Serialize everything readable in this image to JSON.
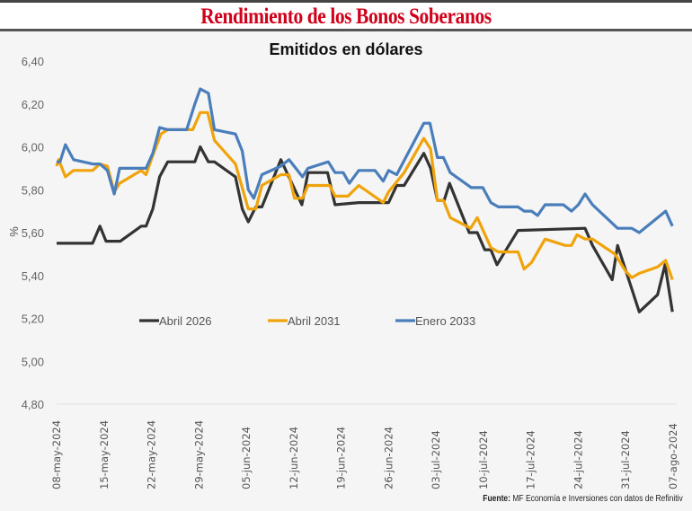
{
  "header": {
    "title": "Rendimiento de los Bonos Soberanos"
  },
  "chart_data": {
    "type": "line",
    "title": "Emitidos en dólares",
    "ylabel": "%",
    "xlabel": "",
    "x_unit": "days since 08-may-2024",
    "xlim": [
      0,
      91
    ],
    "ylim": [
      4.8,
      6.4
    ],
    "yticks": [
      "4,80",
      "5,00",
      "5,20",
      "5,40",
      "5,60",
      "5,80",
      "6,00",
      "6,20",
      "6,40"
    ],
    "yvalues": [
      4.8,
      5.0,
      5.2,
      5.4,
      5.6,
      5.8,
      6.0,
      6.2,
      6.4
    ],
    "xticks": [
      "08-may-2024",
      "15-may-2024",
      "22-may-2024",
      "29-may-2024",
      "05-jun-2024",
      "12-jun-2024",
      "19-jun-2024",
      "26-jun-2024",
      "03-jul-2024",
      "10-jul-2024",
      "17-jul-2024",
      "24-jul-2024",
      "31-jul-2024",
      "07-ago-2024"
    ],
    "grid": false,
    "legend_position": "bottom-inside",
    "series": [
      {
        "name": "Abril 2026",
        "color": "#333333",
        "points": [
          [
            0,
            5.55
          ],
          [
            5.3,
            5.55
          ],
          [
            6.4,
            5.63
          ],
          [
            7.3,
            5.56
          ],
          [
            9.4,
            5.56
          ],
          [
            12.5,
            5.63
          ],
          [
            13.2,
            5.63
          ],
          [
            14.2,
            5.71
          ],
          [
            15.2,
            5.86
          ],
          [
            16.4,
            5.93
          ],
          [
            20.4,
            5.93
          ],
          [
            21.2,
            6.0
          ],
          [
            22.4,
            5.93
          ],
          [
            23.3,
            5.93
          ],
          [
            26.4,
            5.86
          ],
          [
            27.4,
            5.71
          ],
          [
            28.3,
            5.65
          ],
          [
            29.4,
            5.72
          ],
          [
            30.3,
            5.72
          ],
          [
            33.1,
            5.94
          ],
          [
            36.2,
            5.73
          ],
          [
            37.1,
            5.88
          ],
          [
            40,
            5.88
          ],
          [
            41.1,
            5.73
          ],
          [
            44.6,
            5.74
          ],
          [
            49,
            5.74
          ],
          [
            50.2,
            5.82
          ],
          [
            51.3,
            5.82
          ],
          [
            54.2,
            5.97
          ],
          [
            55.2,
            5.9
          ],
          [
            56.2,
            5.75
          ],
          [
            57.2,
            5.75
          ],
          [
            58,
            5.83
          ],
          [
            60.9,
            5.6
          ],
          [
            62.1,
            5.6
          ],
          [
            63.2,
            5.52
          ],
          [
            64.1,
            5.52
          ],
          [
            65,
            5.45
          ],
          [
            68.1,
            5.61
          ],
          [
            78,
            5.62
          ],
          [
            79.1,
            5.54
          ],
          [
            82,
            5.38
          ],
          [
            82.8,
            5.54
          ],
          [
            86,
            5.23
          ],
          [
            88.7,
            5.31
          ],
          [
            89.8,
            5.45
          ],
          [
            90.9,
            5.23
          ]
        ]
      },
      {
        "name": "Abril 2031",
        "color": "#f0a30a",
        "points": [
          [
            0,
            5.91
          ],
          [
            0.3,
            5.94
          ],
          [
            1.3,
            5.86
          ],
          [
            2.5,
            5.89
          ],
          [
            5.3,
            5.89
          ],
          [
            6.4,
            5.92
          ],
          [
            7.5,
            5.91
          ],
          [
            8.5,
            5.79
          ],
          [
            9.3,
            5.83
          ],
          [
            12.5,
            5.89
          ],
          [
            13.2,
            5.87
          ],
          [
            14.2,
            5.96
          ],
          [
            15.4,
            6.06
          ],
          [
            16.4,
            6.08
          ],
          [
            20.1,
            6.08
          ],
          [
            21.2,
            6.16
          ],
          [
            22.3,
            6.16
          ],
          [
            23.3,
            6.03
          ],
          [
            26.4,
            5.92
          ],
          [
            28.3,
            5.71
          ],
          [
            29.4,
            5.71
          ],
          [
            30.3,
            5.82
          ],
          [
            33.1,
            5.87
          ],
          [
            34.3,
            5.87
          ],
          [
            35.1,
            5.76
          ],
          [
            36.3,
            5.76
          ],
          [
            37.1,
            5.82
          ],
          [
            40.3,
            5.82
          ],
          [
            41.1,
            5.77
          ],
          [
            43,
            5.77
          ],
          [
            44.6,
            5.82
          ],
          [
            48.2,
            5.74
          ],
          [
            49,
            5.79
          ],
          [
            51.3,
            5.88
          ],
          [
            54.2,
            6.04
          ],
          [
            55.2,
            5.99
          ],
          [
            56.2,
            5.75
          ],
          [
            57.1,
            5.75
          ],
          [
            58.1,
            5.67
          ],
          [
            61.1,
            5.62
          ],
          [
            62.1,
            5.67
          ],
          [
            64.1,
            5.53
          ],
          [
            65.2,
            5.51
          ],
          [
            68.1,
            5.51
          ],
          [
            69,
            5.43
          ],
          [
            70.1,
            5.46
          ],
          [
            72.1,
            5.57
          ],
          [
            75.1,
            5.54
          ],
          [
            76,
            5.54
          ],
          [
            76.8,
            5.59
          ],
          [
            78,
            5.57
          ],
          [
            79.1,
            5.57
          ],
          [
            82.4,
            5.5
          ],
          [
            84,
            5.42
          ],
          [
            84.9,
            5.39
          ],
          [
            86,
            5.41
          ],
          [
            88.7,
            5.44
          ],
          [
            89.9,
            5.47
          ],
          [
            90.9,
            5.38
          ]
        ]
      },
      {
        "name": "Enero 2033",
        "color": "#4a7ebb",
        "points": [
          [
            0,
            5.93
          ],
          [
            0.5,
            5.93
          ],
          [
            1.3,
            6.01
          ],
          [
            2.5,
            5.94
          ],
          [
            5.3,
            5.92
          ],
          [
            6.4,
            5.92
          ],
          [
            7.5,
            5.89
          ],
          [
            8.5,
            5.78
          ],
          [
            9.3,
            5.9
          ],
          [
            13.2,
            5.9
          ],
          [
            14.2,
            5.97
          ],
          [
            15.2,
            6.09
          ],
          [
            16.4,
            6.08
          ],
          [
            19.2,
            6.08
          ],
          [
            20.4,
            6.2
          ],
          [
            21.2,
            6.27
          ],
          [
            22.4,
            6.25
          ],
          [
            23.3,
            6.08
          ],
          [
            26.4,
            6.06
          ],
          [
            27.4,
            5.98
          ],
          [
            28.3,
            5.8
          ],
          [
            29.1,
            5.76
          ],
          [
            30.3,
            5.87
          ],
          [
            33.1,
            5.91
          ],
          [
            34.3,
            5.94
          ],
          [
            36.3,
            5.86
          ],
          [
            37.1,
            5.9
          ],
          [
            40.1,
            5.93
          ],
          [
            41.1,
            5.88
          ],
          [
            42.3,
            5.88
          ],
          [
            43.2,
            5.83
          ],
          [
            44.6,
            5.89
          ],
          [
            47,
            5.89
          ],
          [
            48.2,
            5.84
          ],
          [
            49,
            5.89
          ],
          [
            50.2,
            5.87
          ],
          [
            54.2,
            6.11
          ],
          [
            55.1,
            6.11
          ],
          [
            56.2,
            5.95
          ],
          [
            57.1,
            5.95
          ],
          [
            58.1,
            5.88
          ],
          [
            61.2,
            5.81
          ],
          [
            62.9,
            5.81
          ],
          [
            64.1,
            5.74
          ],
          [
            65.2,
            5.72
          ],
          [
            68.1,
            5.72
          ],
          [
            69,
            5.7
          ],
          [
            70.1,
            5.7
          ],
          [
            71,
            5.68
          ],
          [
            72.1,
            5.73
          ],
          [
            74.8,
            5.73
          ],
          [
            76,
            5.7
          ],
          [
            77,
            5.73
          ],
          [
            78,
            5.78
          ],
          [
            79.1,
            5.73
          ],
          [
            82.8,
            5.62
          ],
          [
            84.9,
            5.62
          ],
          [
            86,
            5.6
          ],
          [
            89.9,
            5.7
          ],
          [
            90.9,
            5.63
          ]
        ]
      }
    ]
  },
  "source": {
    "label": "Fuente:",
    "text": " MF Economía e Inversiones con datos de Refinitiv"
  }
}
